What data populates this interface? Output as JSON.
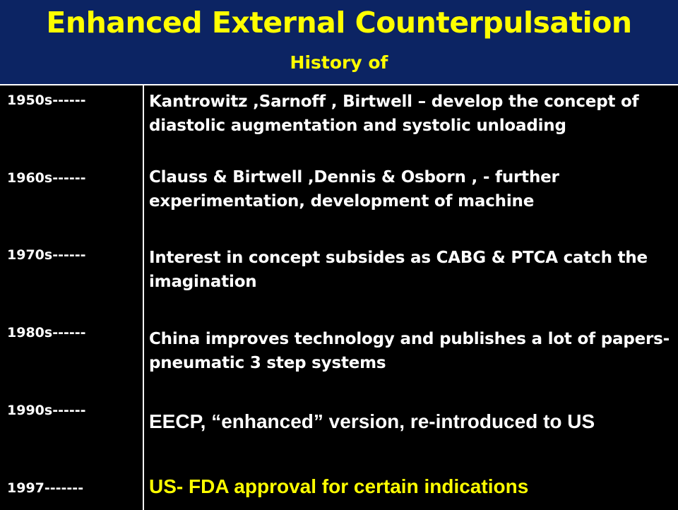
{
  "header": {
    "title": "Enhanced External Counterpulsation",
    "subtitle": "History of"
  },
  "timeline": [
    {
      "year": "1950s------",
      "event": "Kantrowitz ,Sarnoff , Birtwell – develop the concept of diastolic augmentation and systolic unloading"
    },
    {
      "year": "1960s------",
      "event": "Clauss & Birtwell ,Dennis & Osborn , - further experimentation, development of machine"
    },
    {
      "year": "1970s------",
      "event": "Interest in concept subsides as CABG & PTCA catch the imagination"
    },
    {
      "year": "1980s------",
      "event": "China  improves  technology and publishes a lot of papers- pneumatic 3 step systems"
    },
    {
      "year": "1990s------",
      "event": "EECP, “enhanced” version, re-introduced to US"
    },
    {
      "year": "1997-------",
      "event": "US- FDA approval for certain indications"
    }
  ],
  "colors": {
    "header_background": "#0c2463",
    "title_text": "#ffff00",
    "body_background": "#000000",
    "body_text": "#ffffff",
    "highlight_text": "#ffff00"
  }
}
